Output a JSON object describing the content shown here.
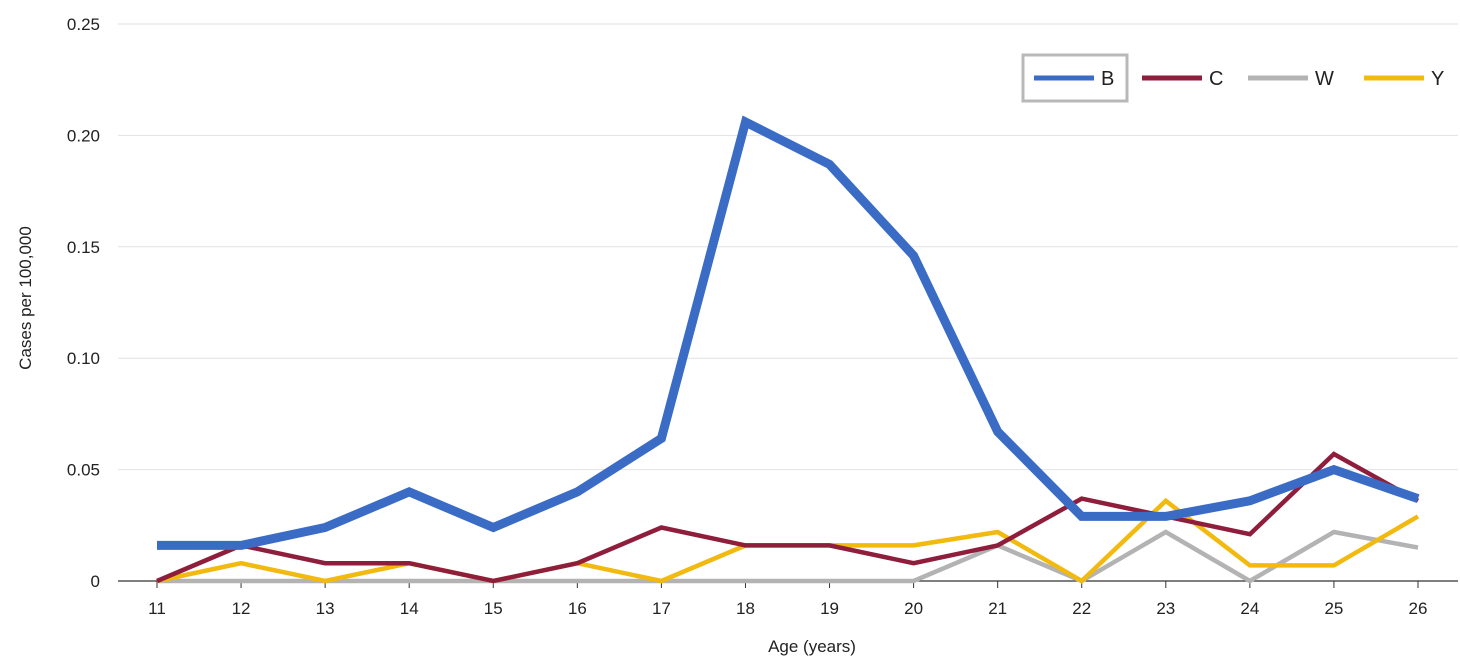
{
  "chart_data": {
    "type": "line",
    "title": "",
    "xlabel": "Age (years)",
    "ylabel": "Cases per 100,000",
    "x": [
      "11",
      "12",
      "13",
      "14",
      "15",
      "16",
      "17",
      "18",
      "19",
      "20",
      "21",
      "22",
      "23",
      "24",
      "25",
      "26"
    ],
    "ylim": [
      0,
      0.25
    ],
    "yticks": [
      "0",
      "0.05",
      "0.10",
      "0.15",
      "0.20",
      "0.25"
    ],
    "grid": true,
    "legend_position": "top-right",
    "series": [
      {
        "name": "B",
        "color": "#3a6cc6",
        "values": [
          0.016,
          0.016,
          0.024,
          0.04,
          0.024,
          0.04,
          0.064,
          0.206,
          0.187,
          0.146,
          0.067,
          0.029,
          0.029,
          0.036,
          0.05,
          0.037
        ]
      },
      {
        "name": "C",
        "color": "#8f1d3c",
        "values": [
          0.0,
          0.016,
          0.008,
          0.008,
          0.0,
          0.008,
          0.024,
          0.016,
          0.016,
          0.008,
          0.016,
          0.037,
          0.029,
          0.021,
          0.057,
          0.036
        ]
      },
      {
        "name": "W",
        "color": "#b3b3b3",
        "values": [
          0.0,
          0.0,
          0.0,
          0.0,
          0.0,
          0.0,
          0.0,
          0.0,
          0.0,
          0.0,
          0.016,
          0.0,
          0.022,
          0.0,
          0.022,
          0.015
        ]
      },
      {
        "name": "Y",
        "color": "#f2b90f",
        "values": [
          0.0,
          0.008,
          0.0,
          0.008,
          0.0,
          0.008,
          0.0,
          0.016,
          0.016,
          0.016,
          0.022,
          0.0,
          0.036,
          0.007,
          0.007,
          0.029
        ]
      }
    ]
  }
}
